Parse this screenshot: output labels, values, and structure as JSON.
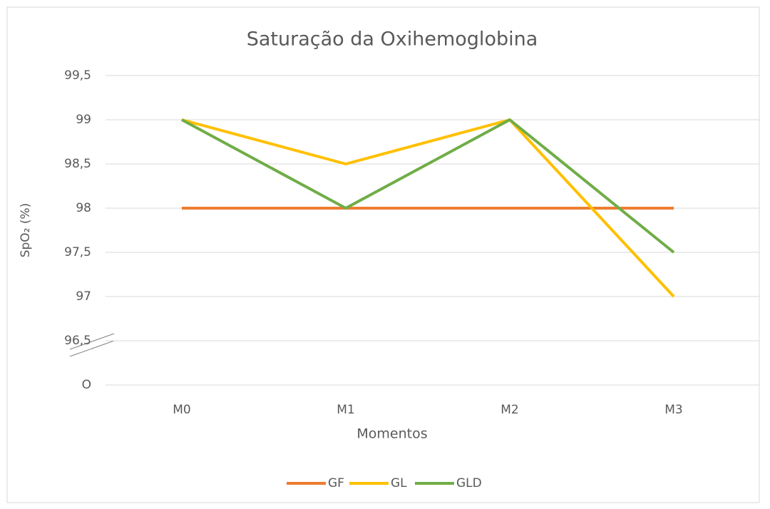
{
  "chart_data": {
    "type": "line",
    "title": "Saturação da Oxihemoglobina",
    "x_label": "Momentos",
    "y_label": "SpO₂ (%)",
    "categories": [
      "M0",
      "M1",
      "M2",
      "M3"
    ],
    "series": [
      {
        "name": "GF",
        "color": "#ed7d31",
        "values": [
          98,
          98,
          98,
          98
        ]
      },
      {
        "name": "GL",
        "color": "#ffc000",
        "values": [
          99,
          98.5,
          99,
          97
        ]
      },
      {
        "name": "GLD",
        "color": "#70ad47",
        "values": [
          99,
          98,
          99,
          97.5
        ]
      }
    ],
    "ylim": [
      0,
      99.5
    ],
    "axis_break": [
      0,
      96.5
    ],
    "yticks": [
      {
        "value": 0,
        "label": "O"
      },
      {
        "value": 96.5,
        "label": "96,5"
      },
      97,
      {
        "value": 97.5,
        "label": "97,5"
      },
      98,
      {
        "value": 98.5,
        "label": "98,5"
      },
      99,
      {
        "value": 99.5,
        "label": "99,5"
      }
    ],
    "grid": true,
    "legend": "bottom"
  }
}
